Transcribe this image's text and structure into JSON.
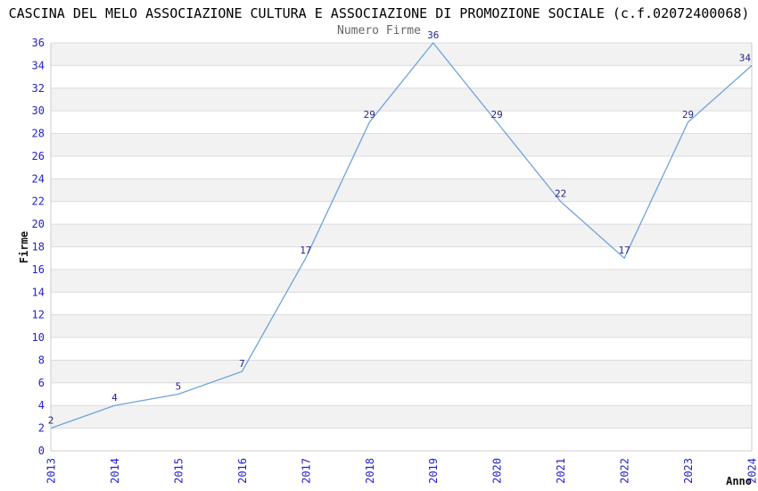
{
  "page_title": "CASCINA DEL MELO ASSOCIAZIONE CULTURA E ASSOCIAZIONE DI PROMOZIONE SOCIALE (c.f.02072400068)",
  "chart_data": {
    "type": "line",
    "title": "Numero Firme",
    "xlabel": "Anno",
    "ylabel": "Firme",
    "categories": [
      "2013",
      "2014",
      "2015",
      "2016",
      "2017",
      "2018",
      "2019",
      "2020",
      "2021",
      "2022",
      "2023",
      "2024"
    ],
    "series": [
      {
        "name": "Numero Firme",
        "values": [
          2,
          4,
          5,
          7,
          17,
          29,
          36,
          29,
          22,
          17,
          29,
          34
        ]
      }
    ],
    "ylim": [
      0,
      36
    ],
    "ytick_step": 2,
    "grid": "horizontal-bands-alternating",
    "legend_position": "none",
    "point_labels_visible": true,
    "colors": {
      "line": "#6FA3DC",
      "tick_label": "#2222CC",
      "point_label": "#1F1F8F",
      "band": "#F2F2F2",
      "gridline": "#DCDCDC",
      "axis_border": "#CCCCCC",
      "title": "#000000",
      "subtitle": "#666666",
      "axis_label": "#111111",
      "background": "#FFFFFF"
    }
  }
}
